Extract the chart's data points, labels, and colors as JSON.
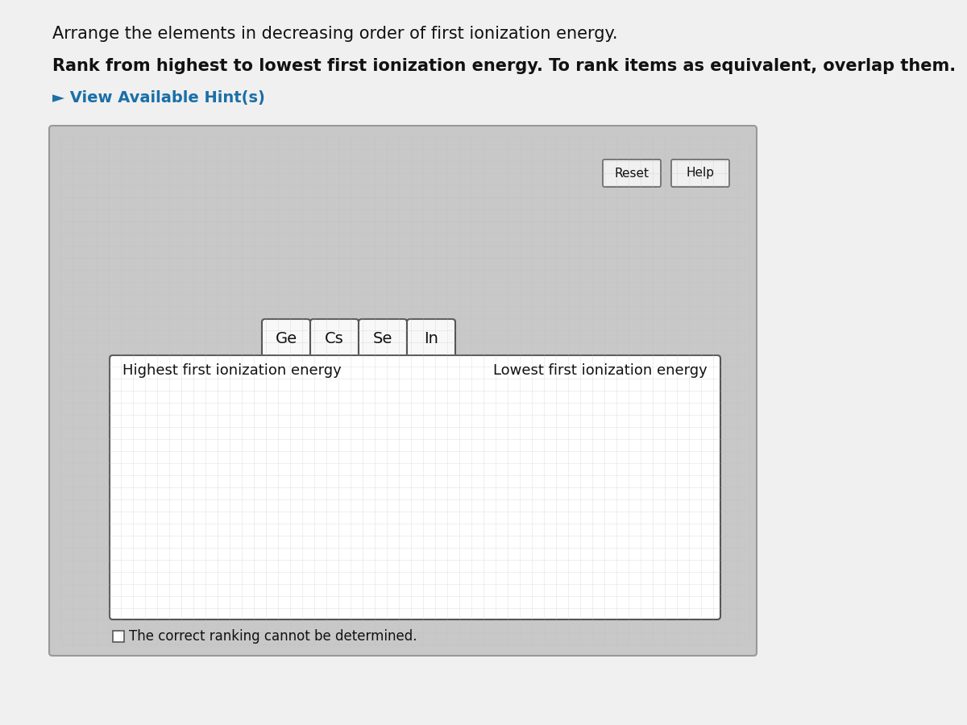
{
  "bg_color": "#e0e0e0",
  "page_bg": "#f0f0f0",
  "title_line1": "Arrange the elements in decreasing order of first ionization energy.",
  "title_line2": "Rank from highest to lowest first ionization energy. To rank items as equivalent, overlap them.",
  "hint_text": "► View Available Hint(s)",
  "hint_color": "#1a6fa8",
  "outer_box_bg": "#c8c8c8",
  "outer_box_edge": "#999999",
  "inner_box_bg": "#ffffff",
  "inner_box_edge": "#444444",
  "reset_btn": "Reset",
  "help_btn": "Help",
  "elements": [
    "Ge",
    "Cs",
    "Se",
    "In"
  ],
  "element_box_color": "#f8f8f8",
  "element_box_edge": "#555555",
  "element_text_color": "#111111",
  "ranking_box_label_left": "Highest first ionization energy",
  "ranking_box_label_right": "Lowest first ionization energy",
  "checkbox_label": "The correct ranking cannot be determined.",
  "title_fontsize": 15,
  "bold_fontsize": 15,
  "hint_fontsize": 14,
  "element_fontsize": 14,
  "label_fontsize": 13,
  "footnote_fontsize": 12
}
